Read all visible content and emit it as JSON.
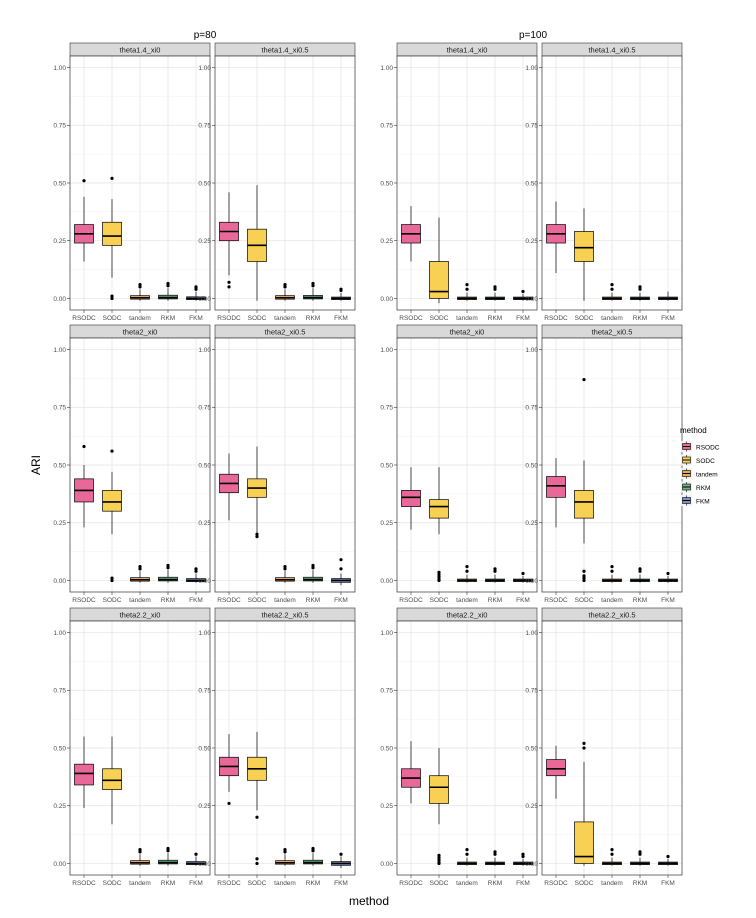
{
  "chart_data": {
    "type": "boxplot",
    "xlabel": "method",
    "ylabel": "ARI",
    "ylim": [
      -0.05,
      1.05
    ],
    "y_ticks": [
      "0.00",
      "0.25",
      "0.50",
      "0.75",
      "1.00"
    ],
    "y_tick_values": [
      0,
      0.25,
      0.5,
      0.75,
      1.0
    ],
    "categories": [
      "RSODC",
      "SODC",
      "tandem",
      "RKM",
      "FKM"
    ],
    "legend": {
      "title": "method",
      "position": "right",
      "items": [
        {
          "label": "RSODC",
          "color": "#E8689A"
        },
        {
          "label": "SODC",
          "color": "#F7D054"
        },
        {
          "label": "tandem",
          "color": "#EFA95A"
        },
        {
          "label": "RKM",
          "color": "#6DB388"
        },
        {
          "label": "FKM",
          "color": "#7C90CB"
        }
      ]
    },
    "groups": [
      "p=80",
      "p=100"
    ],
    "panels": [
      {
        "group": 0,
        "row": 0,
        "col": 0,
        "label": "theta1.4_xi0",
        "boxes": [
          {
            "min": 0.16,
            "q1": 0.24,
            "med": 0.28,
            "q3": 0.32,
            "max": 0.44,
            "outliers": [
              0.51
            ]
          },
          {
            "min": 0.09,
            "q1": 0.23,
            "med": 0.27,
            "q3": 0.33,
            "max": 0.43,
            "outliers": [
              0.52,
              0.01,
              0.0
            ]
          },
          {
            "min": -0.01,
            "q1": -0.003,
            "med": 0.003,
            "q3": 0.012,
            "max": 0.04,
            "outliers": [
              0.05,
              0.06
            ]
          },
          {
            "min": -0.01,
            "q1": -0.002,
            "med": 0.004,
            "q3": 0.014,
            "max": 0.045,
            "outliers": [
              0.055,
              0.065
            ]
          },
          {
            "min": -0.01,
            "q1": -0.005,
            "med": 0.0,
            "q3": 0.007,
            "max": 0.03,
            "outliers": [
              0.04,
              0.05
            ]
          }
        ]
      },
      {
        "group": 0,
        "row": 0,
        "col": 1,
        "label": "theta1.4_xi0.5",
        "boxes": [
          {
            "min": 0.1,
            "q1": 0.25,
            "med": 0.29,
            "q3": 0.33,
            "max": 0.46,
            "outliers": [
              0.07,
              0.05
            ]
          },
          {
            "min": -0.01,
            "q1": 0.16,
            "med": 0.23,
            "q3": 0.3,
            "max": 0.49,
            "outliers": []
          },
          {
            "min": -0.01,
            "q1": -0.003,
            "med": 0.003,
            "q3": 0.012,
            "max": 0.04,
            "outliers": [
              0.05,
              0.06
            ]
          },
          {
            "min": -0.01,
            "q1": -0.002,
            "med": 0.004,
            "q3": 0.013,
            "max": 0.045,
            "outliers": [
              0.055,
              0.065
            ]
          },
          {
            "min": -0.01,
            "q1": -0.005,
            "med": 0.0,
            "q3": 0.006,
            "max": 0.025,
            "outliers": [
              0.035,
              0.04
            ]
          }
        ]
      },
      {
        "group": 1,
        "row": 0,
        "col": 0,
        "label": "theta1.4_xi0",
        "boxes": [
          {
            "min": 0.16,
            "q1": 0.24,
            "med": 0.28,
            "q3": 0.32,
            "max": 0.4,
            "outliers": []
          },
          {
            "min": -0.02,
            "q1": 0.0,
            "med": 0.03,
            "q3": 0.16,
            "max": 0.35,
            "outliers": []
          },
          {
            "min": -0.01,
            "q1": -0.005,
            "med": 0.0,
            "q3": 0.006,
            "max": 0.025,
            "outliers": [
              0.04,
              0.06
            ]
          },
          {
            "min": -0.01,
            "q1": -0.005,
            "med": 0.0,
            "q3": 0.006,
            "max": 0.025,
            "outliers": [
              0.04,
              0.05
            ]
          },
          {
            "min": -0.01,
            "q1": -0.005,
            "med": 0.0,
            "q3": 0.006,
            "max": 0.02,
            "outliers": [
              0.03
            ]
          }
        ]
      },
      {
        "group": 1,
        "row": 0,
        "col": 1,
        "label": "theta1.4_xi0.5",
        "boxes": [
          {
            "min": 0.11,
            "q1": 0.24,
            "med": 0.28,
            "q3": 0.32,
            "max": 0.42,
            "outliers": []
          },
          {
            "min": -0.01,
            "q1": 0.16,
            "med": 0.22,
            "q3": 0.29,
            "max": 0.39,
            "outliers": []
          },
          {
            "min": -0.01,
            "q1": -0.005,
            "med": 0.0,
            "q3": 0.006,
            "max": 0.025,
            "outliers": [
              0.04,
              0.06
            ]
          },
          {
            "min": -0.01,
            "q1": -0.005,
            "med": 0.0,
            "q3": 0.006,
            "max": 0.025,
            "outliers": [
              0.04,
              0.05
            ]
          },
          {
            "min": -0.01,
            "q1": -0.005,
            "med": 0.0,
            "q3": 0.006,
            "max": 0.03,
            "outliers": []
          }
        ]
      },
      {
        "group": 0,
        "row": 1,
        "col": 0,
        "label": "theta2_xi0",
        "boxes": [
          {
            "min": 0.23,
            "q1": 0.34,
            "med": 0.39,
            "q3": 0.44,
            "max": 0.5,
            "outliers": [
              0.58
            ]
          },
          {
            "min": 0.2,
            "q1": 0.3,
            "med": 0.34,
            "q3": 0.39,
            "max": 0.47,
            "outliers": [
              0.56,
              0.01,
              0.0
            ]
          },
          {
            "min": -0.01,
            "q1": -0.003,
            "med": 0.003,
            "q3": 0.012,
            "max": 0.04,
            "outliers": [
              0.05,
              0.06
            ]
          },
          {
            "min": -0.01,
            "q1": -0.002,
            "med": 0.004,
            "q3": 0.014,
            "max": 0.045,
            "outliers": [
              0.055,
              0.065
            ]
          },
          {
            "min": -0.01,
            "q1": -0.005,
            "med": 0.0,
            "q3": 0.008,
            "max": 0.03,
            "outliers": [
              0.04,
              0.05
            ]
          }
        ]
      },
      {
        "group": 0,
        "row": 1,
        "col": 1,
        "label": "theta2_xi0.5",
        "boxes": [
          {
            "min": 0.26,
            "q1": 0.38,
            "med": 0.42,
            "q3": 0.46,
            "max": 0.55,
            "outliers": []
          },
          {
            "min": 0.2,
            "q1": 0.36,
            "med": 0.4,
            "q3": 0.44,
            "max": 0.58,
            "outliers": [
              0.19,
              0.2
            ]
          },
          {
            "min": -0.01,
            "q1": -0.003,
            "med": 0.003,
            "q3": 0.012,
            "max": 0.04,
            "outliers": [
              0.05,
              0.06
            ]
          },
          {
            "min": -0.01,
            "q1": -0.002,
            "med": 0.004,
            "q3": 0.014,
            "max": 0.045,
            "outliers": [
              0.055,
              0.065
            ]
          },
          {
            "min": -0.02,
            "q1": -0.008,
            "med": 0.0,
            "q3": 0.008,
            "max": 0.03,
            "outliers": [
              0.05,
              0.09
            ]
          }
        ]
      },
      {
        "group": 1,
        "row": 1,
        "col": 0,
        "label": "theta2_xi0",
        "boxes": [
          {
            "min": 0.22,
            "q1": 0.32,
            "med": 0.36,
            "q3": 0.39,
            "max": 0.49,
            "outliers": []
          },
          {
            "min": 0.2,
            "q1": 0.27,
            "med": 0.32,
            "q3": 0.35,
            "max": 0.49,
            "outliers": [
              0.035,
              0.025,
              0.015,
              0.005,
              0.0
            ]
          },
          {
            "min": -0.01,
            "q1": -0.005,
            "med": 0.0,
            "q3": 0.006,
            "max": 0.025,
            "outliers": [
              0.04,
              0.06
            ]
          },
          {
            "min": -0.01,
            "q1": -0.005,
            "med": 0.0,
            "q3": 0.006,
            "max": 0.025,
            "outliers": [
              0.04,
              0.05
            ]
          },
          {
            "min": -0.01,
            "q1": -0.005,
            "med": 0.0,
            "q3": 0.006,
            "max": 0.02,
            "outliers": [
              0.03
            ]
          }
        ]
      },
      {
        "group": 1,
        "row": 1,
        "col": 1,
        "label": "theta2_xi0.5",
        "boxes": [
          {
            "min": 0.23,
            "q1": 0.36,
            "med": 0.41,
            "q3": 0.45,
            "max": 0.53,
            "outliers": []
          },
          {
            "min": 0.16,
            "q1": 0.27,
            "med": 0.34,
            "q3": 0.39,
            "max": 0.52,
            "outliers": [
              0.87,
              0.04,
              0.02,
              0.01,
              0.0
            ]
          },
          {
            "min": -0.01,
            "q1": -0.005,
            "med": 0.0,
            "q3": 0.006,
            "max": 0.025,
            "outliers": [
              0.04,
              0.06
            ]
          },
          {
            "min": -0.01,
            "q1": -0.005,
            "med": 0.0,
            "q3": 0.006,
            "max": 0.025,
            "outliers": [
              0.04,
              0.05
            ]
          },
          {
            "min": -0.01,
            "q1": -0.005,
            "med": 0.0,
            "q3": 0.006,
            "max": 0.02,
            "outliers": [
              0.03
            ]
          }
        ]
      },
      {
        "group": 0,
        "row": 2,
        "col": 0,
        "label": "theta2.2_xi0",
        "boxes": [
          {
            "min": 0.24,
            "q1": 0.34,
            "med": 0.39,
            "q3": 0.43,
            "max": 0.55,
            "outliers": []
          },
          {
            "min": 0.17,
            "q1": 0.32,
            "med": 0.36,
            "q3": 0.41,
            "max": 0.55,
            "outliers": []
          },
          {
            "min": -0.01,
            "q1": -0.003,
            "med": 0.003,
            "q3": 0.012,
            "max": 0.04,
            "outliers": [
              0.05,
              0.06
            ]
          },
          {
            "min": -0.01,
            "q1": -0.002,
            "med": 0.004,
            "q3": 0.014,
            "max": 0.045,
            "outliers": [
              0.055,
              0.065
            ]
          },
          {
            "min": -0.01,
            "q1": -0.005,
            "med": 0.0,
            "q3": 0.008,
            "max": 0.03,
            "outliers": [
              0.04
            ]
          }
        ]
      },
      {
        "group": 0,
        "row": 2,
        "col": 1,
        "label": "theta2.2_xi0.5",
        "boxes": [
          {
            "min": 0.31,
            "q1": 0.38,
            "med": 0.42,
            "q3": 0.46,
            "max": 0.56,
            "outliers": [
              0.26
            ]
          },
          {
            "min": 0.23,
            "q1": 0.36,
            "med": 0.41,
            "q3": 0.46,
            "max": 0.57,
            "outliers": [
              0.2,
              0.02,
              0.0
            ]
          },
          {
            "min": -0.01,
            "q1": -0.003,
            "med": 0.003,
            "q3": 0.012,
            "max": 0.04,
            "outliers": [
              0.05,
              0.06
            ]
          },
          {
            "min": -0.01,
            "q1": -0.002,
            "med": 0.004,
            "q3": 0.014,
            "max": 0.045,
            "outliers": [
              0.055,
              0.065
            ]
          },
          {
            "min": -0.02,
            "q1": -0.008,
            "med": 0.0,
            "q3": 0.008,
            "max": 0.03,
            "outliers": [
              0.04
            ]
          }
        ]
      },
      {
        "group": 1,
        "row": 2,
        "col": 0,
        "label": "theta2.2_xi0",
        "boxes": [
          {
            "min": 0.26,
            "q1": 0.33,
            "med": 0.37,
            "q3": 0.41,
            "max": 0.53,
            "outliers": []
          },
          {
            "min": 0.17,
            "q1": 0.26,
            "med": 0.33,
            "q3": 0.38,
            "max": 0.5,
            "outliers": [
              0.035,
              0.025,
              0.015,
              0.005,
              0.0
            ]
          },
          {
            "min": -0.01,
            "q1": -0.005,
            "med": 0.0,
            "q3": 0.006,
            "max": 0.025,
            "outliers": [
              0.04,
              0.06
            ]
          },
          {
            "min": -0.01,
            "q1": -0.005,
            "med": 0.0,
            "q3": 0.006,
            "max": 0.025,
            "outliers": [
              0.04,
              0.05
            ]
          },
          {
            "min": -0.01,
            "q1": -0.005,
            "med": 0.0,
            "q3": 0.006,
            "max": 0.02,
            "outliers": [
              0.03,
              0.04
            ]
          }
        ]
      },
      {
        "group": 1,
        "row": 2,
        "col": 1,
        "label": "theta2.2_xi0.5",
        "boxes": [
          {
            "min": 0.28,
            "q1": 0.38,
            "med": 0.41,
            "q3": 0.45,
            "max": 0.51,
            "outliers": []
          },
          {
            "min": -0.01,
            "q1": 0.0,
            "med": 0.03,
            "q3": 0.18,
            "max": 0.44,
            "outliers": [
              0.52,
              0.5
            ]
          },
          {
            "min": -0.01,
            "q1": -0.005,
            "med": 0.0,
            "q3": 0.006,
            "max": 0.025,
            "outliers": [
              0.04,
              0.06
            ]
          },
          {
            "min": -0.01,
            "q1": -0.005,
            "med": 0.0,
            "q3": 0.006,
            "max": 0.025,
            "outliers": [
              0.04,
              0.05
            ]
          },
          {
            "min": -0.01,
            "q1": -0.005,
            "med": 0.0,
            "q3": 0.006,
            "max": 0.02,
            "outliers": [
              0.03
            ]
          }
        ]
      }
    ]
  }
}
